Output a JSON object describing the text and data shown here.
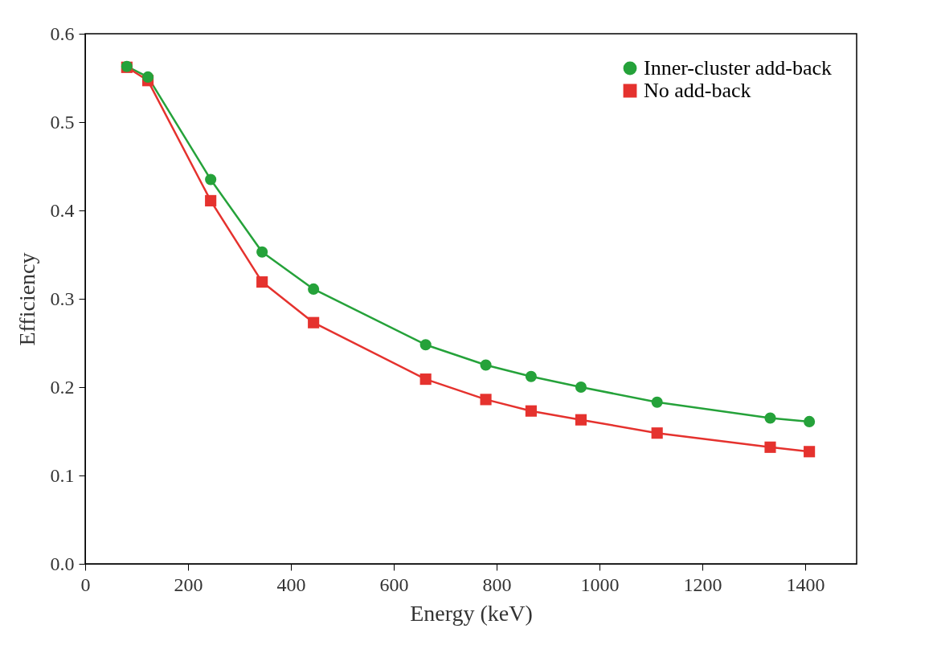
{
  "chart_data": {
    "type": "line",
    "xlabel": "Energy (keV)",
    "ylabel": "Efficiency",
    "x": [
      81,
      122,
      244,
      344,
      444,
      662,
      779,
      867,
      964,
      1112,
      1332,
      1408
    ],
    "series": [
      {
        "name": "Inner-cluster add-back",
        "color": "#25a23a",
        "marker": "circle",
        "values": [
          0.563,
          0.551,
          0.435,
          0.353,
          0.311,
          0.248,
          0.225,
          0.212,
          0.2,
          0.183,
          0.165,
          0.161
        ]
      },
      {
        "name": "No add-back",
        "color": "#e5322e",
        "marker": "square",
        "values": [
          0.562,
          0.547,
          0.411,
          0.319,
          0.273,
          0.209,
          0.186,
          0.173,
          0.163,
          0.148,
          0.132,
          0.127
        ]
      }
    ],
    "xlim": [
      0,
      1500
    ],
    "xticks": [
      0,
      200,
      400,
      600,
      800,
      1000,
      1200,
      1400
    ],
    "ylim": [
      0,
      0.6
    ],
    "yticks": [
      {
        "value": 0,
        "label": "0.0"
      },
      0.1,
      0.2,
      0.3,
      0.4,
      0.5,
      0.6
    ],
    "grid": false,
    "legend": "top right",
    "line_style": "solid"
  }
}
